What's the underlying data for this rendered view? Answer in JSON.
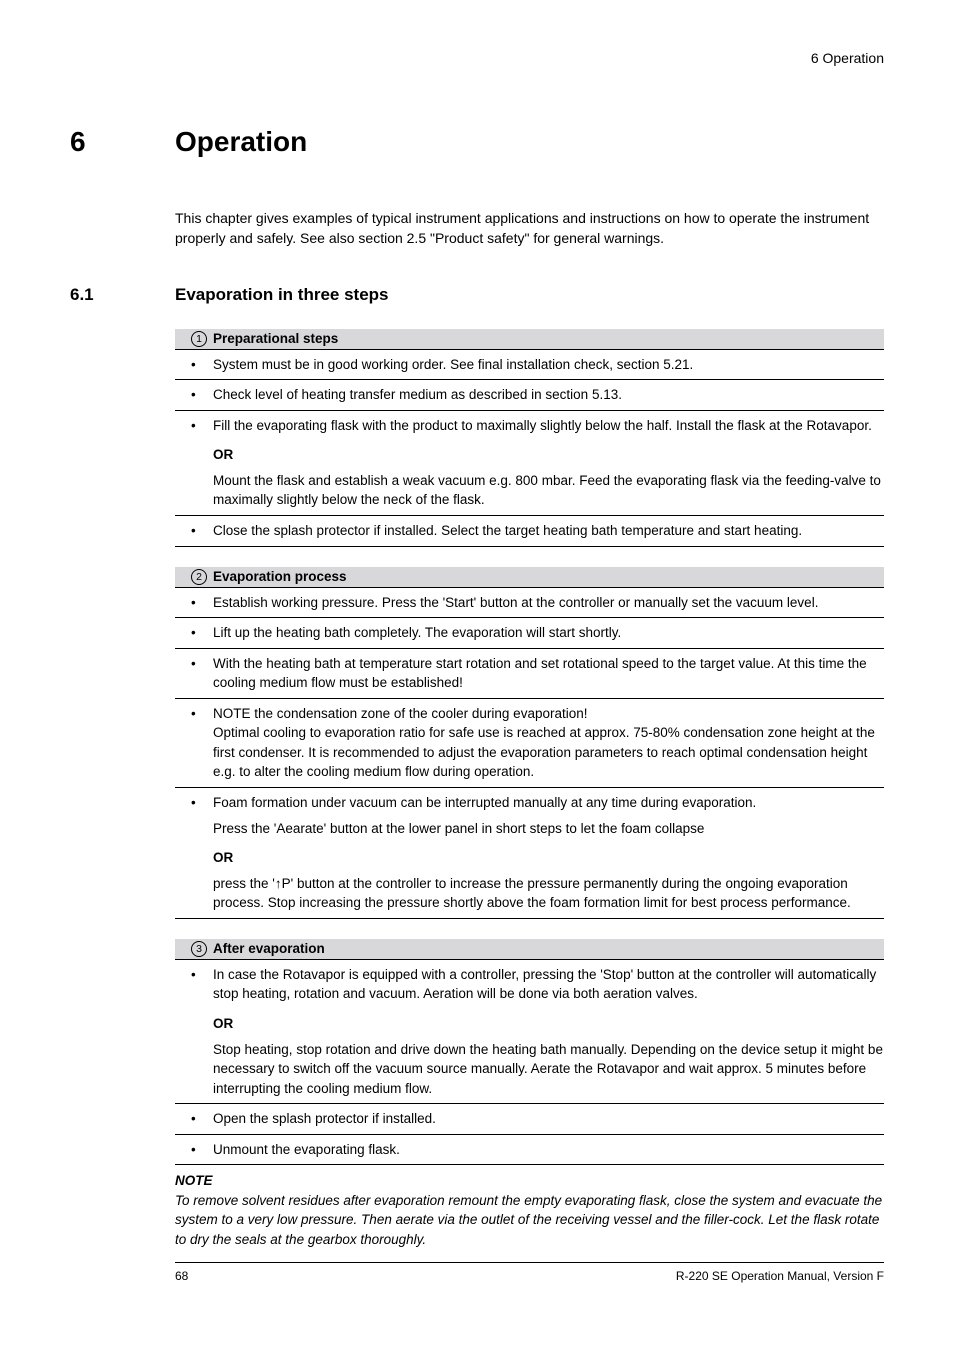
{
  "header": {
    "running": "6  Operation"
  },
  "chapter": {
    "number": "6",
    "title": "Operation"
  },
  "intro": "This chapter gives examples of typical instrument applications and instructions on how to operate the instrument properly and safely. See also section 2.5 \"Product safety\" for general warnings.",
  "section": {
    "number": "6.1",
    "title": "Evaporation in three steps"
  },
  "steps": [
    {
      "num": "1",
      "title": "Preparational steps",
      "items": [
        {
          "text": "System must be in good working order. See final installation check, section 5.21."
        },
        {
          "text": "Check level of heating transfer medium as described in section 5.13."
        },
        {
          "text": "Fill the evaporating flask with the product to maximally slightly below the half. Install the flask at the Rotavapor.",
          "or": "OR",
          "alt": "Mount the flask and establish a weak vacuum e.g. 800 mbar. Feed the evaporating flask via the feeding-valve to maximally slightly below the neck of the flask."
        },
        {
          "text": "Close the splash protector if installed. Select the target heating bath temperature and start heating."
        }
      ]
    },
    {
      "num": "2",
      "title": "Evaporation process",
      "items": [
        {
          "text": "Establish working pressure. Press the 'Start' button at the controller or manually set the vacuum level."
        },
        {
          "text": "Lift up the heating bath completely. The evaporation will start shortly."
        },
        {
          "text": "With the heating bath at temperature start rotation and set rotational speed to the target value. At this time the cooling medium flow must be established!"
        },
        {
          "text": "NOTE the condensation zone of the cooler during evaporation!",
          "cont": "Optimal cooling to evaporation ratio for safe use is reached at approx. 75-80% condensation zone height at the first condenser. It is recommended to adjust the evaporation parameters to reach optimal condensation height e.g. to alter the cooling medium flow during operation."
        },
        {
          "text": "Foam formation under vacuum can be interrupted manually at any time during evaporation.",
          "sub": "Press the 'Aearate' button at the lower panel in short steps to let the foam collapse",
          "or": "OR",
          "alt": "press the '↑P' button at the controller to increase the pressure permanently during the ongoing evaporation process. Stop increasing the pressure shortly above the foam formation limit for best process performance."
        }
      ]
    },
    {
      "num": "3",
      "title": "After evaporation",
      "items": [
        {
          "text": "In case the Rotavapor is equipped with a controller, pressing the 'Stop' button at the controller will automatically stop heating, rotation and vacuum. Aeration will be done via both aeration valves.",
          "or": "OR",
          "alt": "Stop heating, stop rotation and drive down the heating bath manually. Depending on the device setup it might be necessary to switch off the vacuum source manually. Aerate the Rotavapor and wait approx. 5 minutes before interrupting the cooling medium flow."
        },
        {
          "text": "Open the splash protector if installed."
        },
        {
          "text": "Unmount the evaporating flask."
        }
      ]
    }
  ],
  "note": {
    "label": "NOTE",
    "text": "To remove solvent residues after evaporation remount the empty evaporating flask, close the system and evacuate the system to a very low pressure. Then aerate via the outlet of the receiving vessel and the filler-cock. Let the flask rotate to dry the seals at the gearbox thoroughly."
  },
  "footer": {
    "page": "68",
    "doc": "R-220 SE Operation Manual, Version F"
  }
}
